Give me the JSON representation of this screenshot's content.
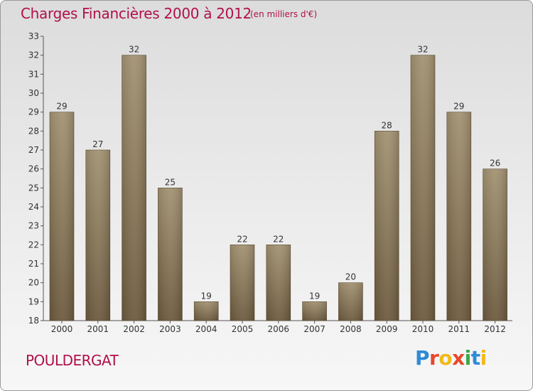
{
  "header": {
    "title": "Charges Financières 2000 à 2012",
    "unit": "(en milliers d'€)"
  },
  "footer": {
    "commune": "POULDERGAT",
    "logo_letters": [
      "P",
      "r",
      "o",
      "x",
      "i",
      "t",
      "i"
    ],
    "logo_colors": [
      "#2e8bd6",
      "#e8472b",
      "#f2b91a",
      "#e8472b",
      "#3aa84a",
      "#2e8bd6",
      "#f2b91a"
    ]
  },
  "chart_data": {
    "type": "bar",
    "categories": [
      "2000",
      "2001",
      "2002",
      "2003",
      "2004",
      "2005",
      "2006",
      "2007",
      "2008",
      "2009",
      "2010",
      "2011",
      "2012"
    ],
    "values": [
      29,
      27,
      32,
      25,
      19,
      22,
      22,
      19,
      20,
      28,
      32,
      29,
      26
    ],
    "ylim": [
      18,
      33
    ],
    "yticks": [
      18,
      19,
      20,
      21,
      22,
      23,
      24,
      25,
      26,
      27,
      28,
      29,
      30,
      31,
      32,
      33
    ],
    "grid": false,
    "bar_color_top": "#a39272",
    "bar_color_bottom": "#6c5a3e"
  }
}
